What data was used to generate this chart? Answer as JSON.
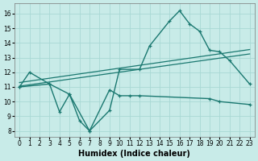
{
  "background": "#c8ebe8",
  "grid_color": "#a8d8d4",
  "line_color": "#1a7870",
  "xlabel": "Humidex (Indice chaleur)",
  "xlim": [
    -0.5,
    23.5
  ],
  "ylim": [
    7.6,
    16.7
  ],
  "yticks": [
    8,
    9,
    10,
    11,
    12,
    13,
    14,
    15,
    16
  ],
  "xticks": [
    0,
    1,
    2,
    3,
    4,
    5,
    6,
    7,
    8,
    9,
    10,
    11,
    12,
    13,
    14,
    15,
    16,
    17,
    18,
    19,
    20,
    21,
    22,
    23
  ],
  "upper_x": [
    0,
    1,
    3,
    5,
    7,
    9,
    10,
    12,
    13,
    15,
    16,
    17,
    18,
    19,
    20,
    21,
    23
  ],
  "upper_y": [
    11,
    12,
    11.2,
    10.5,
    8.0,
    9.4,
    12.2,
    12.2,
    13.8,
    15.5,
    16.2,
    15.3,
    14.8,
    13.5,
    13.4,
    12.8,
    11.2
  ],
  "lower_x": [
    0,
    3,
    4,
    5,
    6,
    7,
    9,
    10,
    11,
    12,
    19,
    20,
    23
  ],
  "lower_y": [
    11,
    11.2,
    9.3,
    10.5,
    8.7,
    8.0,
    10.8,
    10.4,
    10.4,
    10.4,
    10.2,
    10.0,
    9.8
  ],
  "trend1_x": [
    0,
    23
  ],
  "trend1_y": [
    11.05,
    13.25
  ],
  "trend2_x": [
    0,
    23
  ],
  "trend2_y": [
    11.3,
    13.55
  ]
}
